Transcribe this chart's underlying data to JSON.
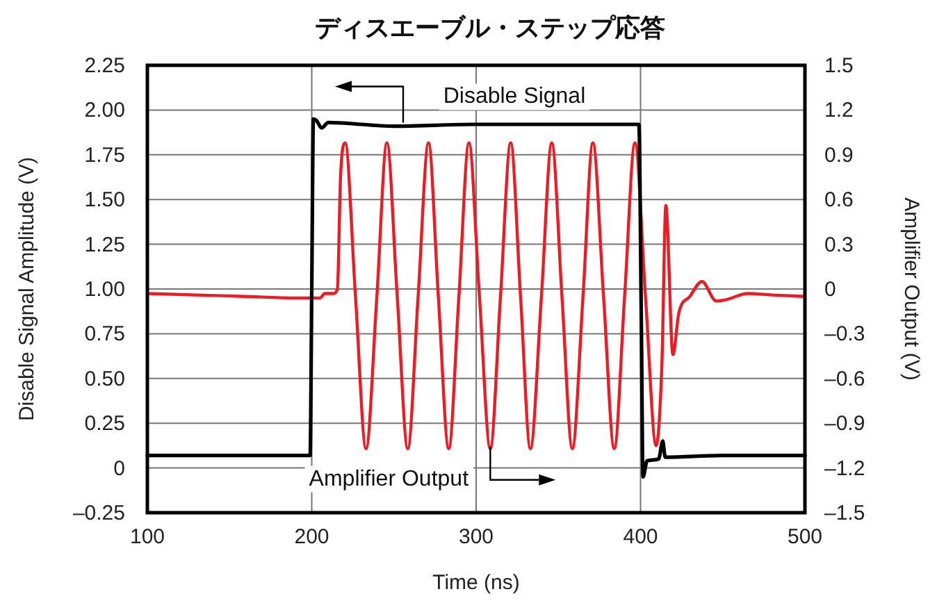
{
  "chart_data": {
    "type": "line",
    "title": "ディスエーブル・ステップ応答",
    "xlabel": "Time (ns)",
    "ylabel": "Disable Signal Amplitude (V)",
    "y2label": "Amplifier Output (V)",
    "xlim": [
      100,
      500
    ],
    "xticks": [
      100,
      200,
      300,
      400,
      500
    ],
    "ylim": [
      -0.25,
      2.25
    ],
    "yticks": [
      {
        "value": 2.25,
        "label": "2.25"
      },
      {
        "value": 2,
        "label": "2.00"
      },
      {
        "value": 1.75,
        "label": "1.75"
      },
      {
        "value": 1.5,
        "label": "1.50"
      },
      {
        "value": 1.25,
        "label": "1.25"
      },
      {
        "value": 1,
        "label": "1.00"
      },
      {
        "value": 0.75,
        "label": "0.75"
      },
      {
        "value": 0.5,
        "label": "0.50"
      },
      {
        "value": 0.25,
        "label": "0.25"
      },
      {
        "value": 0,
        "label": "0"
      },
      {
        "value": -0.25,
        "label": "–0.25"
      }
    ],
    "y2lim": [
      -1.5,
      1.5
    ],
    "y2ticks": [
      1.5,
      1.2,
      0.9,
      0.6,
      0.3,
      0,
      {
        "value": -0.3,
        "label": "–0.3"
      },
      {
        "value": -0.6,
        "label": "–0.6"
      },
      {
        "value": -0.9,
        "label": "–0.9"
      },
      {
        "value": -1.2,
        "label": "–1.2"
      },
      {
        "value": -1.5,
        "label": "–1.5"
      }
    ],
    "grid": true,
    "series": [
      {
        "color": "#000000",
        "x": [
          100,
          150,
          199,
          200,
          201,
          203,
          206,
          210,
          250,
          300,
          350,
          399,
          400.5,
          401.5,
          404,
          411,
          413.5,
          415,
          450,
          500
        ],
        "values": [
          0.07,
          0.07,
          0.07,
          1.0,
          1.95,
          1.94,
          1.9,
          1.93,
          1.91,
          1.92,
          1.92,
          1.92,
          0.8,
          -0.05,
          0.04,
          0.05,
          0.15,
          0.06,
          0.07,
          0.07
        ]
      },
      {
        "color": "#ed1c24",
        "axis": "y2",
        "x": [
          100,
          130,
          160,
          190,
          205,
          208,
          213,
          215.6,
          217.5,
          220.3,
          226.6,
          233,
          239.6,
          245.7,
          252,
          258.4,
          264.7,
          271,
          277,
          283.3,
          289.5,
          295.6,
          302,
          308.6,
          314.8,
          321,
          327,
          333,
          339.7,
          346,
          352.2,
          358.5,
          365,
          371,
          377.5,
          384,
          390.3,
          396.6,
          403,
          409.5,
          413,
          415.4,
          419.7,
          423.3,
          430,
          437.4,
          446,
          452.6,
          465,
          480,
          500
        ],
        "values": [
          -0.03,
          -0.04,
          -0.05,
          -0.06,
          -0.06,
          -0.03,
          -0.03,
          0.0,
          0.75,
          0.98,
          -0.05,
          -1.07,
          -0.05,
          0.98,
          -0.05,
          -1.07,
          -0.05,
          0.98,
          -0.05,
          -1.07,
          -0.05,
          0.98,
          -0.05,
          -1.07,
          -0.05,
          0.98,
          -0.05,
          -1.07,
          -0.05,
          0.98,
          -0.05,
          -1.07,
          -0.05,
          0.98,
          -0.05,
          -1.07,
          -0.05,
          0.98,
          -0.05,
          -1.05,
          -0.5,
          0.56,
          -0.44,
          -0.16,
          -0.05,
          0.05,
          -0.08,
          -0.07,
          -0.03,
          -0.04,
          -0.05
        ]
      }
    ],
    "annotations": [
      {
        "text": "Disable Signal",
        "x": 255.6,
        "y": 1.93
      },
      {
        "text": "Amplifier Output",
        "x": 308.6,
        "y": 0.12
      }
    ]
  }
}
